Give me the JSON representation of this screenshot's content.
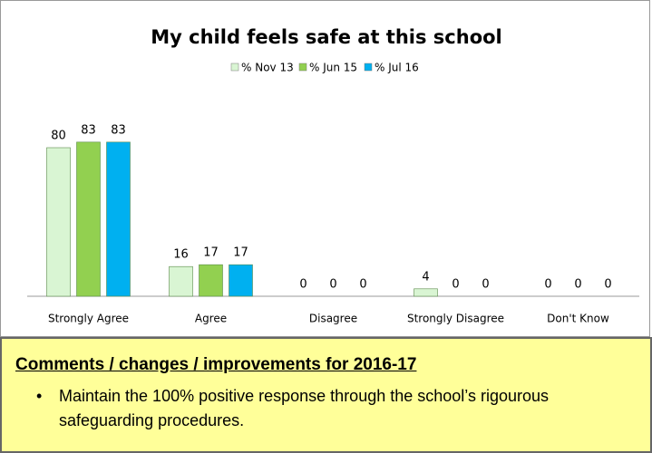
{
  "chart_data": {
    "type": "bar",
    "title": "My child feels safe at this school",
    "categories": [
      "Strongly Agree",
      "Agree",
      "Disagree",
      "Strongly Disagree",
      "Don't Know"
    ],
    "series": [
      {
        "name": "% Nov 13",
        "color": "#d9f5d3",
        "values": [
          80,
          16,
          0,
          4,
          0
        ]
      },
      {
        "name": "% Jun 15",
        "color": "#92d050",
        "values": [
          83,
          17,
          0,
          0,
          0
        ]
      },
      {
        "name": "% Jul 16",
        "color": "#00b0f0",
        "values": [
          83,
          17,
          0,
          0,
          0
        ]
      }
    ],
    "ylim": [
      0,
      100
    ],
    "legend": "top",
    "grid": false
  },
  "comments": {
    "heading": "Comments / changes / improvements for 2016-17",
    "items": [
      "Maintain the 100% positive response through the school’s rigourous safeguarding procedures."
    ]
  }
}
